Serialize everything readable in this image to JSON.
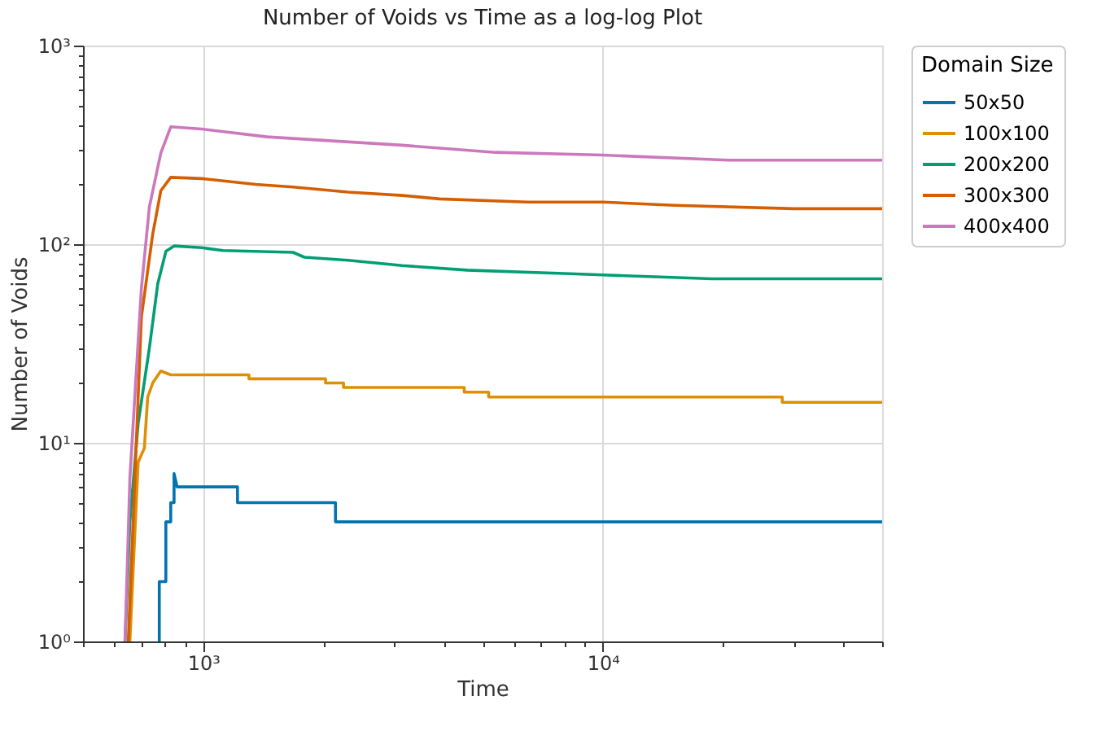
{
  "chart_data": {
    "type": "line",
    "title": "Number of Voids vs Time as a log-log Plot",
    "xlabel": "Time",
    "ylabel": "Number of Voids",
    "legend_title": "Domain Size",
    "legend": "top right",
    "log": "xy",
    "grid": true,
    "xlim": [
      500,
      50000
    ],
    "ylim": [
      1,
      1000
    ],
    "xticks": [
      {
        "value": 500,
        "label": null
      },
      {
        "value": 600,
        "label": null
      },
      {
        "value": 700,
        "label": null
      },
      {
        "value": 800,
        "label": null
      },
      {
        "value": 900,
        "label": null
      },
      {
        "value": 1000,
        "label": "10³"
      },
      {
        "value": 2000,
        "label": null
      },
      {
        "value": 3000,
        "label": null
      },
      {
        "value": 4000,
        "label": null
      },
      {
        "value": 5000,
        "label": null
      },
      {
        "value": 6000,
        "label": null
      },
      {
        "value": 7000,
        "label": null
      },
      {
        "value": 8000,
        "label": null
      },
      {
        "value": 9000,
        "label": null
      },
      {
        "value": 10000,
        "label": "10⁴"
      },
      {
        "value": 20000,
        "label": null
      },
      {
        "value": 30000,
        "label": null
      },
      {
        "value": 40000,
        "label": null
      },
      {
        "value": 50000,
        "label": null
      }
    ],
    "yticks": [
      {
        "value": 1,
        "label": "10⁰"
      },
      {
        "value": 2,
        "label": null
      },
      {
        "value": 3,
        "label": null
      },
      {
        "value": 4,
        "label": null
      },
      {
        "value": 5,
        "label": null
      },
      {
        "value": 6,
        "label": null
      },
      {
        "value": 7,
        "label": null
      },
      {
        "value": 8,
        "label": null
      },
      {
        "value": 9,
        "label": null
      },
      {
        "value": 10,
        "label": "10¹"
      },
      {
        "value": 20,
        "label": null
      },
      {
        "value": 30,
        "label": null
      },
      {
        "value": 40,
        "label": null
      },
      {
        "value": 50,
        "label": null
      },
      {
        "value": 60,
        "label": null
      },
      {
        "value": 70,
        "label": null
      },
      {
        "value": 80,
        "label": null
      },
      {
        "value": 90,
        "label": null
      },
      {
        "value": 100,
        "label": "10²"
      },
      {
        "value": 200,
        "label": null
      },
      {
        "value": 300,
        "label": null
      },
      {
        "value": 400,
        "label": null
      },
      {
        "value": 500,
        "label": null
      },
      {
        "value": 600,
        "label": null
      },
      {
        "value": 700,
        "label": null
      },
      {
        "value": 800,
        "label": null
      },
      {
        "value": 900,
        "label": null
      },
      {
        "value": 1000,
        "label": "10³"
      }
    ],
    "series": [
      {
        "name": "50x50",
        "color": "#0173b2",
        "x": [
          776,
          776,
          806,
          806,
          829,
          829,
          845,
          845,
          860,
          1218,
          1218,
          2142,
          2142,
          50000
        ],
        "values": [
          1,
          2,
          2,
          4,
          4,
          5,
          5,
          7,
          6,
          6,
          5,
          5,
          4,
          4
        ]
      },
      {
        "name": "100x100",
        "color": "#de8f05",
        "x": [
          655,
          687,
          712,
          726,
          747,
          783,
          829,
          1301,
          1301,
          2023,
          2023,
          2244,
          2244,
          4499,
          4499,
          5178,
          5178,
          28120,
          28120,
          50000
        ],
        "values": [
          1,
          8,
          9.4,
          17,
          20,
          23,
          22,
          22,
          21,
          21,
          20,
          20,
          19,
          19,
          18,
          18,
          17,
          17,
          16,
          16
        ]
      },
      {
        "name": "200x200",
        "color": "#029e73",
        "x": [
          637,
          655,
          687,
          733,
          769,
          806,
          845,
          991,
          1119,
          1677,
          1790,
          2306,
          3146,
          4580,
          8275,
          10000,
          18740,
          50000
        ],
        "values": [
          1,
          4,
          12.5,
          30,
          63,
          92,
          98,
          96,
          93,
          91,
          86,
          83,
          78,
          74,
          71,
          70,
          67,
          67
        ]
      },
      {
        "name": "300x300",
        "color": "#d55e00",
        "x": [
          649,
          700,
          747,
          783,
          829,
          991,
          1351,
          1677,
          2306,
          3146,
          3906,
          6486,
          10000,
          15140,
          30060,
          50000
        ],
        "values": [
          1,
          43,
          112,
          186,
          217,
          214,
          200,
          194,
          183,
          176,
          169,
          163,
          163,
          157,
          151,
          151
        ]
      },
      {
        "name": "400x400",
        "color": "#cc78bc",
        "x": [
          637,
          655,
          700,
          733,
          783,
          829,
          991,
          1443,
          3146,
          5383,
          10000,
          20610,
          50000
        ],
        "values": [
          1,
          6.6,
          60,
          154,
          288,
          390,
          380,
          347,
          315,
          290,
          281,
          265,
          265
        ]
      }
    ]
  }
}
